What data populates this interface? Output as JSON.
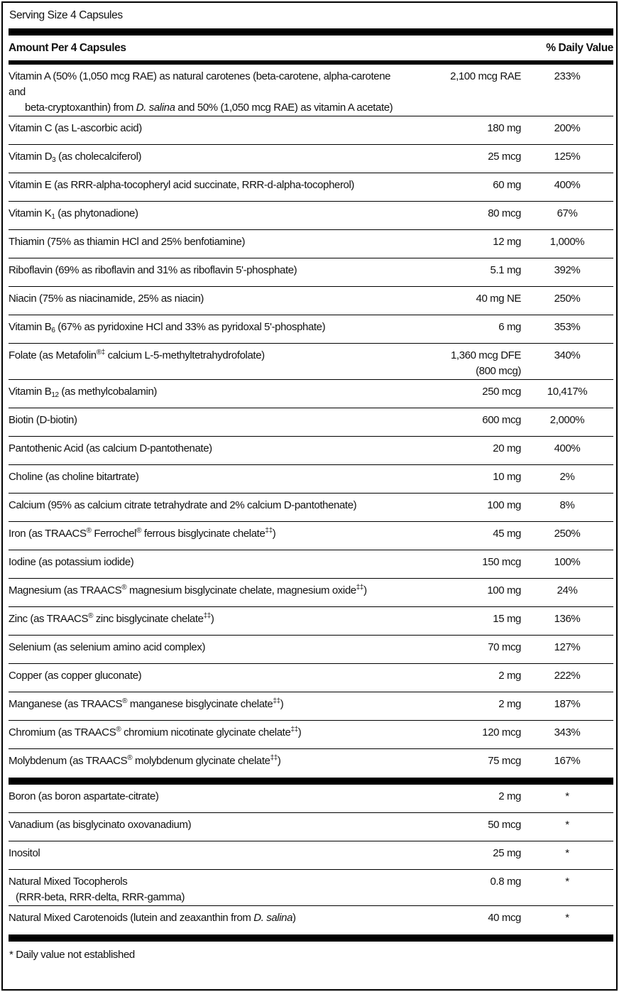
{
  "serving_size": "Serving Size 4 Capsules",
  "header": {
    "amount_label": "Amount Per 4 Capsules",
    "dv_label": "% Daily Value"
  },
  "nutrients": [
    {
      "name": [
        {
          "t": "Vitamin A (50% (1,050 mcg RAE) as natural carotenes (beta-carotene, alpha-carotene and"
        }
      ],
      "cont": [
        {
          "t": "beta-cryptoxanthin) from "
        },
        {
          "i": "D. salina"
        },
        {
          "t": " and 50% (1,050 mcg RAE) as vitamin A acetate)"
        }
      ],
      "amount": "2,100 mcg RAE",
      "dv": "233%"
    },
    {
      "name": [
        {
          "t": "Vitamin C (as L-ascorbic acid)"
        }
      ],
      "amount": "180 mg",
      "dv": "200%"
    },
    {
      "name": [
        {
          "t": "Vitamin D"
        },
        {
          "sub": "3"
        },
        {
          "t": " (as cholecalciferol)"
        }
      ],
      "amount": "25 mcg",
      "dv": "125%"
    },
    {
      "name": [
        {
          "t": "Vitamin E (as RRR-alpha-tocopheryl acid succinate, RRR-d-alpha-tocopherol)"
        }
      ],
      "amount": "60 mg",
      "dv": "400%"
    },
    {
      "name": [
        {
          "t": "Vitamin K"
        },
        {
          "sub": "1"
        },
        {
          "t": " (as phytonadione)"
        }
      ],
      "amount": "80 mcg",
      "dv": "67%"
    },
    {
      "name": [
        {
          "t": "Thiamin (75% as thiamin HCl and 25% benfotiamine)"
        }
      ],
      "amount": "12 mg",
      "dv": "1,000%"
    },
    {
      "name": [
        {
          "t": "Riboflavin (69% as riboflavin and 31% as riboflavin 5'-phosphate)"
        }
      ],
      "amount": "5.1 mg",
      "dv": "392%"
    },
    {
      "name": [
        {
          "t": "Niacin (75% as niacinamide, 25% as niacin)"
        }
      ],
      "amount": "40 mg NE",
      "dv": "250%"
    },
    {
      "name": [
        {
          "t": "Vitamin B"
        },
        {
          "sub": "6"
        },
        {
          "t": " (67% as pyridoxine HCl and 33% as pyridoxal 5'-phosphate)"
        }
      ],
      "amount": "6 mg",
      "dv": "353%"
    },
    {
      "name": [
        {
          "t": "Folate (as Metafolin"
        },
        {
          "sup": "®‡"
        },
        {
          "t": " calcium L-5-methyltetrahydrofolate)"
        }
      ],
      "amount": "1,360 mcg DFE",
      "amount2": "(800 mcg)",
      "dv": "340%"
    },
    {
      "name": [
        {
          "t": "Vitamin B"
        },
        {
          "sub": "12"
        },
        {
          "t": " (as methylcobalamin)"
        }
      ],
      "amount": "250 mcg",
      "dv": "10,417%"
    },
    {
      "name": [
        {
          "t": "Biotin (D-biotin)"
        }
      ],
      "amount": "600 mcg",
      "dv": "2,000%"
    },
    {
      "name": [
        {
          "t": "Pantothenic Acid (as calcium D-pantothenate)"
        }
      ],
      "amount": "20 mg",
      "dv": "400%"
    },
    {
      "name": [
        {
          "t": "Choline (as choline bitartrate)"
        }
      ],
      "amount": "10 mg",
      "dv": "2%"
    },
    {
      "name": [
        {
          "t": "Calcium (95% as calcium citrate tetrahydrate and 2% calcium D-pantothenate)"
        }
      ],
      "amount": "100 mg",
      "dv": "8%"
    },
    {
      "name": [
        {
          "t": "Iron (as TRAACS"
        },
        {
          "sup": "®"
        },
        {
          "t": " Ferrochel"
        },
        {
          "sup": "®"
        },
        {
          "t": " ferrous bisglycinate chelate"
        },
        {
          "sup": "‡‡"
        },
        {
          "t": ")"
        }
      ],
      "amount": "45 mg",
      "dv": "250%"
    },
    {
      "name": [
        {
          "t": "Iodine (as potassium iodide)"
        }
      ],
      "amount": "150 mcg",
      "dv": "100%"
    },
    {
      "name": [
        {
          "t": "Magnesium (as TRAACS"
        },
        {
          "sup": "®"
        },
        {
          "t": " magnesium bisglycinate chelate, magnesium oxide"
        },
        {
          "sup": "‡‡"
        },
        {
          "t": ")"
        }
      ],
      "amount": "100 mg",
      "dv": "24%"
    },
    {
      "name": [
        {
          "t": "Zinc (as TRAACS"
        },
        {
          "sup": "®"
        },
        {
          "t": " zinc bisglycinate chelate"
        },
        {
          "sup": "‡‡"
        },
        {
          "t": ")"
        }
      ],
      "amount": "15 mg",
      "dv": "136%"
    },
    {
      "name": [
        {
          "t": "Selenium (as selenium amino acid complex)"
        }
      ],
      "amount": "70 mcg",
      "dv": "127%"
    },
    {
      "name": [
        {
          "t": "Copper (as copper gluconate)"
        }
      ],
      "amount": "2 mg",
      "dv": "222%"
    },
    {
      "name": [
        {
          "t": "Manganese (as TRAACS"
        },
        {
          "sup": "®"
        },
        {
          "t": " manganese bisglycinate chelate"
        },
        {
          "sup": "‡‡"
        },
        {
          "t": ")"
        }
      ],
      "amount": "2 mg",
      "dv": "187%"
    },
    {
      "name": [
        {
          "t": "Chromium (as TRAACS"
        },
        {
          "sup": "®"
        },
        {
          "t": " chromium nicotinate glycinate chelate"
        },
        {
          "sup": "‡‡"
        },
        {
          "t": ")"
        }
      ],
      "amount": "120 mcg",
      "dv": "343%"
    },
    {
      "name": [
        {
          "t": "Molybdenum (as TRAACS"
        },
        {
          "sup": "®"
        },
        {
          "t": " molybdenum glycinate chelate"
        },
        {
          "sup": "‡‡"
        },
        {
          "t": ")"
        }
      ],
      "amount": "75 mcg",
      "dv": "167%"
    }
  ],
  "other_ingredients": [
    {
      "name": [
        {
          "t": "Boron (as boron aspartate-citrate)"
        }
      ],
      "amount": "2 mg",
      "dv": "*"
    },
    {
      "name": [
        {
          "t": "Vanadium (as bisglycinato oxovanadium)"
        }
      ],
      "amount": "50 mcg",
      "dv": "*"
    },
    {
      "name": [
        {
          "t": "Inositol"
        }
      ],
      "amount": "25 mg",
      "dv": "*"
    },
    {
      "name": [
        {
          "t": "Natural Mixed Tocopherols"
        }
      ],
      "cont": [
        {
          "t": "(RRR-beta, RRR-delta, RRR-gamma)"
        }
      ],
      "cont_indent": "small",
      "amount": "0.8 mg",
      "dv": "*"
    },
    {
      "name": [
        {
          "t": "Natural Mixed Carotenoids (lutein and zeaxanthin from "
        },
        {
          "i": "D. salina"
        },
        {
          "t": ")"
        }
      ],
      "amount": "40 mcg",
      "dv": "*"
    }
  ],
  "footnote": "* Daily value not established"
}
